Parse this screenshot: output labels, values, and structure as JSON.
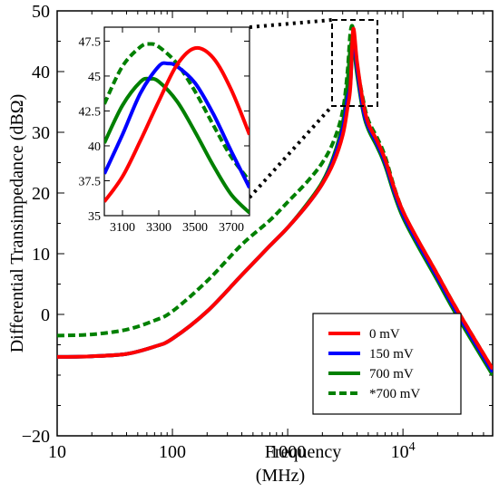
{
  "chart_data": [
    {
      "type": "line",
      "title": "",
      "xlabel": [
        "Frequency",
        "(MHz)"
      ],
      "ylabel": "Differential Transimpedance (dBΩ)",
      "x_scale": "log",
      "xlim": [
        10,
        60000
      ],
      "ylim": [
        -20,
        50
      ],
      "x_tick_labels": [
        "10",
        "100",
        "1000",
        "10⁴"
      ],
      "y_tick_labels": [
        "50",
        "40",
        "30",
        "20",
        "10",
        "0",
        "−20"
      ],
      "grid": false,
      "legend": {
        "placement": "bottom-right"
      },
      "x": [
        10,
        20,
        40,
        70,
        100,
        200,
        400,
        700,
        1000,
        1500,
        2000,
        2500,
        3000,
        3300,
        3500,
        3700,
        4000,
        4500,
        5000,
        6000,
        7000,
        10000,
        20000,
        30000,
        60000
      ],
      "series": [
        {
          "name": "0 mV",
          "color": "#ff0000",
          "style": "solid",
          "values": [
            -7,
            -6.9,
            -6.5,
            -5.3,
            -4.0,
            0.5,
            6.5,
            11.3,
            14.3,
            18.2,
            21.5,
            25.0,
            29.5,
            34.0,
            37.5,
            47.0,
            41.5,
            35.0,
            31.5,
            28.5,
            25.5,
            17.0,
            6.5,
            0.5,
            -9.0
          ]
        },
        {
          "name": "150 mV",
          "color": "#0000ff",
          "style": "solid",
          "values": [
            -7,
            -6.9,
            -6.5,
            -5.3,
            -4.0,
            0.5,
            6.5,
            11.3,
            14.3,
            18.2,
            21.5,
            25.5,
            30.5,
            35.5,
            38.0,
            46.0,
            40.5,
            34.0,
            31.0,
            28.0,
            25.0,
            16.5,
            6.0,
            0.0,
            -9.5
          ]
        },
        {
          "name": "700 mV",
          "color": "#008000",
          "style": "solid",
          "values": [
            -7,
            -6.9,
            -6.5,
            -5.3,
            -4.0,
            0.5,
            6.5,
            11.3,
            14.3,
            18.4,
            21.8,
            26.0,
            31.5,
            38.0,
            44.0,
            44.5,
            39.5,
            33.5,
            30.5,
            27.5,
            24.5,
            16.0,
            5.5,
            -0.5,
            -10.0
          ]
        },
        {
          "name": "*700 mV",
          "color": "#008000",
          "style": "dashed",
          "values": [
            -3.5,
            -3.3,
            -2.5,
            -1.0,
            0.5,
            5.5,
            11.5,
            15.5,
            18.5,
            22.0,
            25.0,
            28.5,
            33.5,
            40.0,
            46.5,
            47.0,
            41.0,
            35.5,
            32.0,
            29.0,
            26.0,
            17.0,
            6.5,
            0.5,
            -9.0
          ]
        }
      ]
    },
    {
      "type": "line",
      "title": "",
      "xlim": [
        3000,
        3800
      ],
      "ylim": [
        35,
        48.5
      ],
      "x_tick_labels": [
        "3100",
        "3300",
        "3500",
        "3700"
      ],
      "y_tick_labels": [
        "47.5",
        "45",
        "42.5",
        "40",
        "37.5",
        "35"
      ],
      "grid": false,
      "series": [
        {
          "name": "0 mV",
          "color": "#ff0000",
          "style": "solid",
          "x": [
            3000,
            3100,
            3200,
            3300,
            3400,
            3500,
            3600,
            3700,
            3800
          ],
          "values": [
            36.0,
            37.8,
            40.4,
            43.2,
            45.8,
            47.0,
            46.3,
            44.0,
            40.8
          ]
        },
        {
          "name": "150 mV",
          "color": "#0000ff",
          "style": "solid",
          "x": [
            3000,
            3100,
            3200,
            3300,
            3350,
            3400,
            3500,
            3600,
            3700,
            3800
          ],
          "values": [
            38.0,
            40.8,
            43.8,
            45.7,
            45.9,
            45.7,
            44.5,
            42.3,
            39.6,
            37.0
          ]
        },
        {
          "name": "700 mV",
          "color": "#008000",
          "style": "solid",
          "x": [
            3000,
            3100,
            3200,
            3250,
            3300,
            3400,
            3500,
            3600,
            3700,
            3800
          ],
          "values": [
            40.2,
            42.9,
            44.6,
            44.8,
            44.6,
            43.2,
            41.0,
            38.6,
            36.5,
            35.2
          ]
        },
        {
          "name": "*700 mV",
          "color": "#008000",
          "style": "dashed",
          "x": [
            3000,
            3100,
            3200,
            3250,
            3300,
            3400,
            3500,
            3600,
            3700,
            3800
          ],
          "values": [
            43.0,
            45.7,
            47.1,
            47.3,
            47.1,
            45.9,
            43.9,
            41.5,
            39.2,
            37.5
          ]
        }
      ]
    }
  ]
}
